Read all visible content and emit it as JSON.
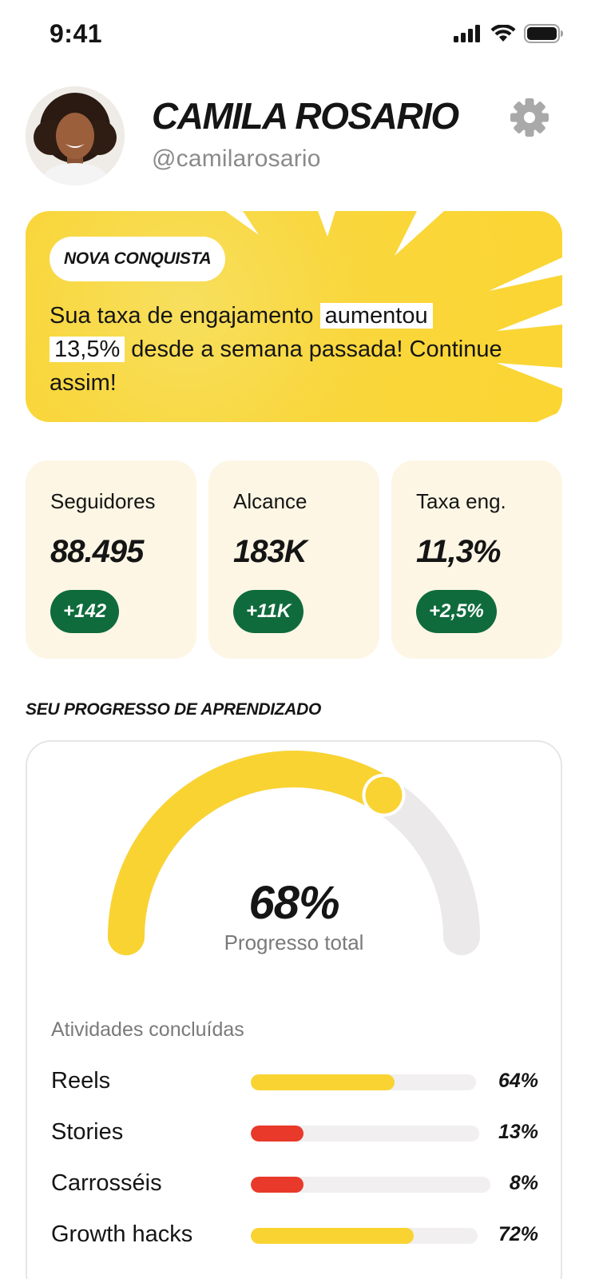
{
  "status_bar": {
    "time": "9:41"
  },
  "profile": {
    "name": "CAMILA ROSARIO",
    "handle": "@camilarosario"
  },
  "achievement": {
    "badge": "NOVA CONQUISTA",
    "text_before": "Sua taxa de engajamento ",
    "highlight_1": "aumentou",
    "highlight_2": "13,5%",
    "text_after": " desde a semana passada! Continue assim!"
  },
  "stats": [
    {
      "label": "Seguidores",
      "value": "88.495",
      "delta": "+142"
    },
    {
      "label": "Alcance",
      "value": "183K",
      "delta": "+11K"
    },
    {
      "label": "Taxa eng.",
      "value": "11,3%",
      "delta": "+2,5%"
    }
  ],
  "learning": {
    "section_title": "SEU PROGRESSO DE APRENDIZADO",
    "total_percent_label": "68%",
    "total_percent": 68,
    "total_caption": "Progresso total",
    "activities_title": "Atividades concluídas",
    "activities": [
      {
        "label": "Reels",
        "percent": 64,
        "percent_label": "64%",
        "color": "#f9d332"
      },
      {
        "label": "Stories",
        "percent": 13,
        "percent_label": "13%",
        "color": "#e8392a"
      },
      {
        "label": "Carrosséis",
        "percent": 8,
        "percent_label": "8%",
        "color": "#e8392a"
      },
      {
        "label": "Growth hacks",
        "percent": 72,
        "percent_label": "72%",
        "color": "#f9d332"
      }
    ]
  },
  "colors": {
    "accent_yellow": "#f9d332",
    "accent_green": "#0f6b3c",
    "accent_red": "#e8392a",
    "card_cream": "#fdf6e5"
  },
  "icons": {
    "settings": "gear-icon",
    "signal": "signal-icon",
    "wifi": "wifi-icon",
    "battery": "battery-icon"
  }
}
